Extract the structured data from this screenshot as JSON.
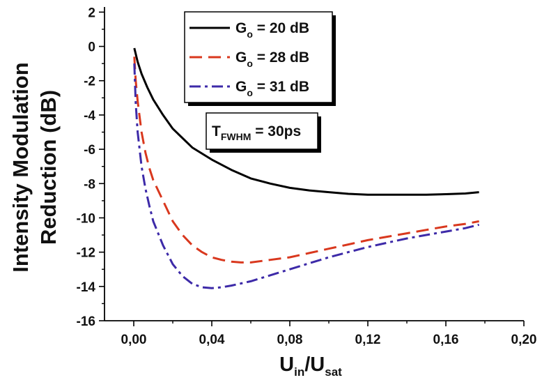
{
  "chart_data": {
    "type": "line",
    "xlabel": {
      "main": "U",
      "sub1": "in",
      "mid": "/U",
      "sub2": "sat"
    },
    "ylabel": {
      "line1": "Intensity Modulation",
      "line2": "Reduction (dB)"
    },
    "xlim": [
      -0.015,
      0.2
    ],
    "ylim": [
      -16,
      2.3
    ],
    "x_ticks": [
      0.0,
      0.04,
      0.08,
      0.12,
      0.16,
      0.2
    ],
    "x_tick_labels": [
      "0,00",
      "0,04",
      "0,08",
      "0,12",
      "0,16",
      "0,20"
    ],
    "y_ticks": [
      2,
      0,
      -2,
      -4,
      -6,
      -8,
      -10,
      -12,
      -14,
      -16
    ],
    "y_tick_labels": [
      "2",
      "0",
      "-2",
      "-4",
      "-6",
      "-8",
      "-10",
      "-12",
      "-14",
      "-16"
    ],
    "legend_position": "top-center",
    "series": [
      {
        "name": {
          "main": "G",
          "sub": "o",
          "rest": " = 20 dB"
        },
        "color": "#000000",
        "style": "solid",
        "x": [
          0.0003,
          0.002,
          0.004,
          0.007,
          0.01,
          0.015,
          0.02,
          0.03,
          0.04,
          0.05,
          0.06,
          0.07,
          0.08,
          0.09,
          0.1,
          0.11,
          0.12,
          0.13,
          0.14,
          0.15,
          0.16,
          0.17,
          0.177
        ],
        "y": [
          -0.1,
          -0.9,
          -1.6,
          -2.4,
          -3.1,
          -4.0,
          -4.8,
          -5.9,
          -6.6,
          -7.2,
          -7.7,
          -8.0,
          -8.25,
          -8.4,
          -8.5,
          -8.6,
          -8.65,
          -8.65,
          -8.65,
          -8.65,
          -8.62,
          -8.58,
          -8.5
        ]
      },
      {
        "name": {
          "main": "G",
          "sub": "o",
          "rest": " = 28 dB"
        },
        "color": "#d9381e",
        "style": "dash",
        "x": [
          0.0003,
          0.001,
          0.002,
          0.004,
          0.006,
          0.008,
          0.01,
          0.015,
          0.02,
          0.025,
          0.03,
          0.035,
          0.04,
          0.045,
          0.05,
          0.055,
          0.06,
          0.07,
          0.08,
          0.09,
          0.1,
          0.11,
          0.12,
          0.13,
          0.14,
          0.15,
          0.16,
          0.17,
          0.177
        ],
        "y": [
          -0.6,
          -2.0,
          -3.2,
          -5.0,
          -6.2,
          -7.1,
          -7.8,
          -9.0,
          -10.2,
          -11.0,
          -11.6,
          -12.0,
          -12.3,
          -12.45,
          -12.55,
          -12.6,
          -12.6,
          -12.45,
          -12.3,
          -12.05,
          -11.8,
          -11.55,
          -11.3,
          -11.1,
          -10.9,
          -10.7,
          -10.5,
          -10.35,
          -10.2
        ]
      },
      {
        "name": {
          "main": "G",
          "sub": "o",
          "rest": " = 31 dB"
        },
        "color": "#3d2aa8",
        "style": "dashdot",
        "x": [
          0.0003,
          0.001,
          0.002,
          0.004,
          0.006,
          0.008,
          0.01,
          0.015,
          0.02,
          0.025,
          0.03,
          0.035,
          0.04,
          0.045,
          0.05,
          0.06,
          0.07,
          0.08,
          0.09,
          0.1,
          0.11,
          0.12,
          0.13,
          0.14,
          0.15,
          0.16,
          0.17,
          0.177
        ],
        "y": [
          -1.0,
          -3.3,
          -5.0,
          -7.0,
          -8.3,
          -9.3,
          -10.2,
          -11.6,
          -12.7,
          -13.4,
          -13.85,
          -14.05,
          -14.1,
          -14.05,
          -13.95,
          -13.7,
          -13.35,
          -13.0,
          -12.65,
          -12.3,
          -12.0,
          -11.7,
          -11.45,
          -11.2,
          -11.0,
          -10.8,
          -10.6,
          -10.4
        ]
      }
    ],
    "annotation": {
      "main": "T",
      "sub": "FWHM",
      "rest": " = 30ps"
    }
  }
}
